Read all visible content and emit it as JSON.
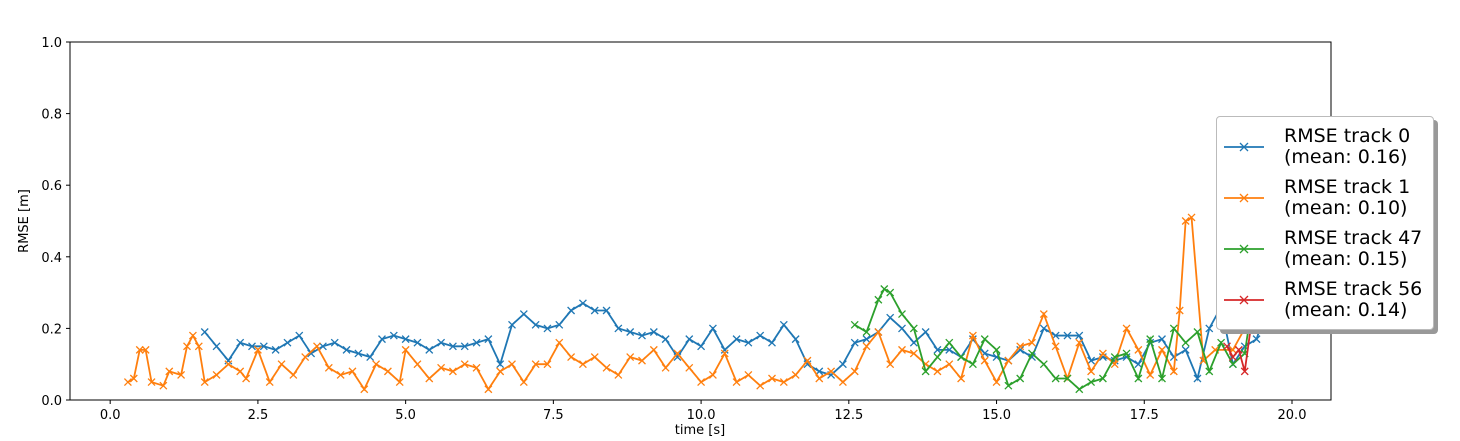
{
  "chart_data": {
    "type": "line",
    "xlabel": "time [s]",
    "ylabel": "RMSE [m]",
    "xlim": [
      -0.68,
      20.66
    ],
    "ylim": [
      0,
      1
    ],
    "xticks": [
      {
        "value": 0,
        "label": "0.0"
      },
      2.5,
      {
        "value": 5,
        "label": "5.0"
      },
      7.5,
      {
        "value": 10,
        "label": "10.0"
      },
      12.5,
      {
        "value": 15,
        "label": "15.0"
      },
      17.5,
      {
        "value": 20,
        "label": "20.0"
      }
    ],
    "yticks": [
      {
        "value": 0,
        "label": "0.0"
      },
      0.2,
      0.4,
      0.6,
      0.8,
      {
        "value": 1,
        "label": "1.0"
      }
    ],
    "legend": "right",
    "marker": "x",
    "series": [
      {
        "name": "RMSE track 0\n(mean: 0.16)",
        "color": "#1f77b4",
        "x": [
          1.6,
          1.8,
          2.0,
          2.2,
          2.4,
          2.6,
          2.8,
          3.0,
          3.2,
          3.4,
          3.6,
          3.8,
          4.0,
          4.2,
          4.4,
          4.6,
          4.8,
          5.0,
          5.2,
          5.4,
          5.6,
          5.8,
          6.0,
          6.2,
          6.4,
          6.6,
          6.8,
          7.0,
          7.2,
          7.4,
          7.6,
          7.8,
          8.0,
          8.2,
          8.4,
          8.6,
          8.8,
          9.0,
          9.2,
          9.4,
          9.6,
          9.8,
          10.0,
          10.2,
          10.4,
          10.6,
          10.8,
          11.0,
          11.2,
          11.4,
          11.6,
          11.8,
          12.0,
          12.2,
          12.4,
          12.6,
          12.8,
          13.0,
          13.2,
          13.4,
          13.6,
          13.8,
          14.0,
          14.2,
          14.4,
          14.6,
          14.8,
          15.0,
          15.2,
          15.4,
          15.6,
          15.8,
          16.0,
          16.2,
          16.4,
          16.6,
          16.8,
          17.0,
          17.2,
          17.4,
          17.6,
          17.8,
          18.0,
          18.2,
          18.4,
          18.6,
          18.8,
          19.0,
          19.2,
          19.4,
          19.5
        ],
        "values": [
          0.19,
          0.15,
          0.11,
          0.16,
          0.15,
          0.15,
          0.14,
          0.16,
          0.18,
          0.13,
          0.15,
          0.16,
          0.14,
          0.13,
          0.12,
          0.17,
          0.18,
          0.17,
          0.16,
          0.14,
          0.16,
          0.15,
          0.15,
          0.16,
          0.17,
          0.1,
          0.21,
          0.24,
          0.21,
          0.2,
          0.21,
          0.25,
          0.27,
          0.25,
          0.25,
          0.2,
          0.19,
          0.18,
          0.19,
          0.17,
          0.12,
          0.17,
          0.15,
          0.2,
          0.14,
          0.17,
          0.16,
          0.18,
          0.16,
          0.21,
          0.17,
          0.1,
          0.08,
          0.07,
          0.1,
          0.16,
          0.17,
          0.19,
          0.23,
          0.2,
          0.16,
          0.19,
          0.14,
          0.14,
          0.12,
          0.17,
          0.13,
          0.12,
          0.11,
          0.14,
          0.12,
          0.2,
          0.18,
          0.18,
          0.18,
          0.11,
          0.12,
          0.11,
          0.12,
          0.1,
          0.16,
          0.17,
          0.12,
          0.14,
          0.06,
          0.2,
          0.26,
          0.1,
          0.15,
          0.17,
          0.22
        ]
      },
      {
        "name": "RMSE track 1\n(mean: 0.10)",
        "color": "#ff7f0e",
        "x": [
          0.3,
          0.4,
          0.5,
          0.6,
          0.7,
          0.9,
          1.0,
          1.2,
          1.3,
          1.4,
          1.5,
          1.6,
          1.8,
          2.0,
          2.2,
          2.3,
          2.5,
          2.7,
          2.9,
          3.1,
          3.3,
          3.5,
          3.7,
          3.9,
          4.1,
          4.3,
          4.5,
          4.7,
          4.9,
          5.0,
          5.2,
          5.4,
          5.6,
          5.8,
          6.0,
          6.2,
          6.4,
          6.6,
          6.8,
          7.0,
          7.2,
          7.4,
          7.6,
          7.8,
          8.0,
          8.2,
          8.4,
          8.6,
          8.8,
          9.0,
          9.2,
          9.4,
          9.6,
          9.8,
          10.0,
          10.2,
          10.4,
          10.6,
          10.8,
          11.0,
          11.2,
          11.4,
          11.6,
          11.8,
          12.0,
          12.2,
          12.4,
          12.6,
          12.8,
          13.0,
          13.2,
          13.4,
          13.6,
          13.8,
          14.0,
          14.2,
          14.4,
          14.6,
          14.8,
          15.0,
          15.2,
          15.4,
          15.6,
          15.8,
          16.0,
          16.2,
          16.4,
          16.6,
          16.8,
          17.0,
          17.2,
          17.4,
          17.6,
          17.8,
          18.0,
          18.1,
          18.2,
          18.3,
          18.5,
          18.7,
          19.0,
          19.3
        ],
        "values": [
          0.05,
          0.06,
          0.14,
          0.14,
          0.05,
          0.04,
          0.08,
          0.07,
          0.15,
          0.18,
          0.15,
          0.05,
          0.07,
          0.1,
          0.08,
          0.06,
          0.14,
          0.05,
          0.1,
          0.07,
          0.12,
          0.15,
          0.09,
          0.07,
          0.08,
          0.03,
          0.1,
          0.08,
          0.05,
          0.14,
          0.1,
          0.06,
          0.09,
          0.08,
          0.1,
          0.09,
          0.03,
          0.08,
          0.1,
          0.05,
          0.1,
          0.1,
          0.16,
          0.12,
          0.1,
          0.12,
          0.09,
          0.07,
          0.12,
          0.11,
          0.14,
          0.09,
          0.13,
          0.09,
          0.05,
          0.07,
          0.13,
          0.05,
          0.07,
          0.04,
          0.06,
          0.05,
          0.07,
          0.11,
          0.06,
          0.08,
          0.05,
          0.08,
          0.15,
          0.19,
          0.1,
          0.14,
          0.13,
          0.1,
          0.08,
          0.1,
          0.06,
          0.18,
          0.11,
          0.05,
          0.11,
          0.15,
          0.16,
          0.24,
          0.15,
          0.06,
          0.16,
          0.08,
          0.13,
          0.1,
          0.2,
          0.14,
          0.07,
          0.14,
          0.08,
          0.25,
          0.5,
          0.51,
          0.11,
          0.14,
          0.14,
          0.23
        ]
      },
      {
        "name": "RMSE track 47\n(mean: 0.15)",
        "color": "#2ca02c",
        "x": [
          12.6,
          12.8,
          13.0,
          13.1,
          13.2,
          13.4,
          13.6,
          13.8,
          14.0,
          14.2,
          14.4,
          14.6,
          14.8,
          15.0,
          15.2,
          15.4,
          15.6,
          15.8,
          16.0,
          16.2,
          16.4,
          16.6,
          16.8,
          17.0,
          17.2,
          17.4,
          17.6,
          17.8,
          18.0,
          18.2,
          18.4,
          18.6,
          18.8,
          19.0,
          19.2,
          19.3
        ],
        "values": [
          0.21,
          0.19,
          0.28,
          0.31,
          0.3,
          0.24,
          0.2,
          0.08,
          0.12,
          0.16,
          0.12,
          0.1,
          0.17,
          0.14,
          0.04,
          0.06,
          0.13,
          0.1,
          0.06,
          0.06,
          0.03,
          0.05,
          0.06,
          0.12,
          0.13,
          0.06,
          0.17,
          0.06,
          0.2,
          0.16,
          0.19,
          0.08,
          0.16,
          0.1,
          0.13,
          0.24
        ]
      },
      {
        "name": "RMSE track 56\n(mean: 0.14)",
        "color": "#d62728",
        "x": [
          18.9,
          19.0,
          19.1,
          19.2,
          19.3
        ],
        "values": [
          0.15,
          0.12,
          0.14,
          0.08,
          0.2
        ]
      }
    ]
  }
}
